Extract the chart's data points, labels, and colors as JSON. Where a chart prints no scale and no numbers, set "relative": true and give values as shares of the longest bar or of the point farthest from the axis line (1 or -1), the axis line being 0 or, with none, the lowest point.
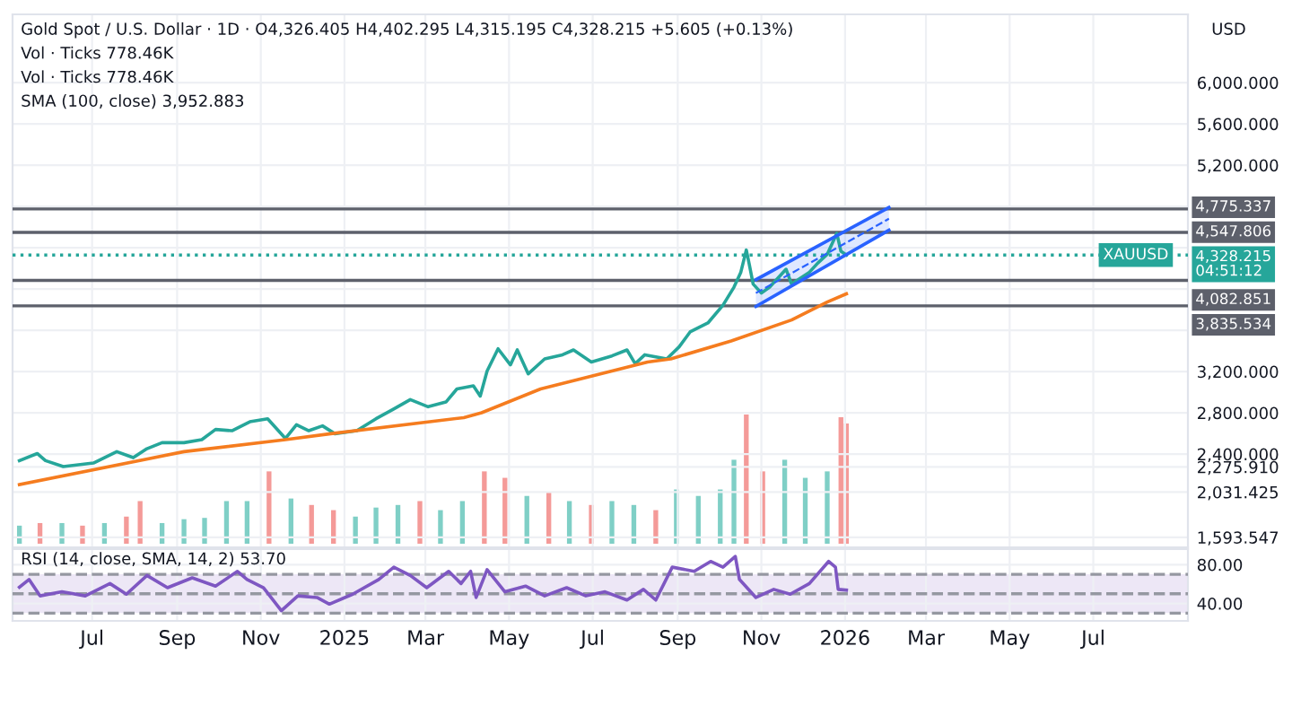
{
  "chart_data": [
    {
      "type": "line",
      "title": "Gold Spot / U.S. Dollar · 1D · O4,326.405 H4,402.295 L4,315.195 C4,328.215 +5.605 (+0.13%)",
      "ylabel": "USD",
      "annotations": [
        "Vol · Ticks 778.46K",
        "Vol · Ticks 778.46K",
        "SMA (100, close) 3,952.883",
        {
          "text": "XAUUSD",
          "x": "2026-08-01",
          "y": 4328.215
        }
      ],
      "series": [
        {
          "color": "#26a69a",
          "x": [
            "2024-05-09",
            "2024-05-22",
            "2024-05-28",
            "2024-06-10",
            "2024-07-02",
            "2024-07-19",
            "2024-07-31",
            "2024-08-10",
            "2024-08-21",
            "2024-09-06",
            "2024-09-19",
            "2024-09-29",
            "2024-10-11",
            "2024-10-24",
            "2024-11-06",
            "2024-11-19",
            "2024-11-27",
            "2024-12-06",
            "2024-12-16",
            "2024-12-25",
            "2025-01-10",
            "2025-01-24",
            "2025-02-05",
            "2025-02-18",
            "2025-03-03",
            "2025-03-16",
            "2025-03-24",
            "2025-04-05",
            "2025-04-10",
            "2025-04-15",
            "2025-04-23",
            "2025-05-02",
            "2025-05-07",
            "2025-05-15",
            "2025-05-27",
            "2025-06-09",
            "2025-06-17",
            "2025-06-30",
            "2025-07-15",
            "2025-07-26",
            "2025-08-01",
            "2025-08-08",
            "2025-08-24",
            "2025-09-02",
            "2025-09-10",
            "2025-09-23",
            "2025-10-04",
            "2025-10-12",
            "2025-10-17",
            "2025-10-21",
            "2025-10-23",
            "2025-10-26",
            "2025-11-01",
            "2025-11-07",
            "2025-11-19",
            "2025-11-23",
            "2025-12-06",
            "2025-12-12",
            "2025-12-19",
            "2025-12-26",
            "2025-12-29",
            "2026-01-02"
          ],
          "values": [
            2336,
            2405,
            2336,
            2278,
            2313,
            2423,
            2365,
            2452,
            2510,
            2510,
            2539,
            2638,
            2626,
            2713,
            2742,
            2551,
            2684,
            2626,
            2673,
            2597,
            2626,
            2742,
            2829,
            2927,
            2858,
            2904,
            3031,
            3061,
            2962,
            3205,
            3420,
            3264,
            3409,
            3177,
            3322,
            3362,
            3409,
            3292,
            3351,
            3409,
            3275,
            3362,
            3322,
            3438,
            3583,
            3670,
            3843,
            4017,
            4162,
            4377,
            4249,
            4047,
            3960,
            4017,
            4191,
            4047,
            4162,
            4249,
            4336,
            4539,
            4365,
            4328.215
          ]
        },
        {
          "color": "#f57c1f",
          "x": [
            "2024-05-09",
            "2024-09-06",
            "2024-11-19",
            "2024-12-22",
            "2025-03-29",
            "2025-04-11",
            "2025-05-24",
            "2025-08-10",
            "2025-08-27",
            "2025-10-10",
            "2025-11-23",
            "2025-12-19",
            "2026-01-02"
          ],
          "values": [
            2104,
            2423,
            2539,
            2597,
            2753,
            2800,
            3031,
            3292,
            3322,
            3496,
            3699,
            3873,
            3952.883
          ]
        },
        {
          "color": "#2962ff",
          "line_style": "dashed",
          "x": [
            "2025-10-28",
            "2026-02-02"
          ],
          "values": [
            3960,
            4680
          ],
          "lower": [
            3830,
            4570
          ],
          "upper": [
            4090,
            4790
          ]
        },
        {
          "color": "#2962ff",
          "x": [
            "2025-10-28",
            "2026-02-02"
          ],
          "values": [
            3830,
            4570
          ]
        },
        {
          "color": "#2962ff",
          "x": [
            "2025-10-28",
            "2026-02-02"
          ],
          "values": [
            4090,
            4790
          ]
        }
      ],
      "xlim": [
        "2024-05-04",
        "2026-09-08"
      ],
      "ylim": [
        1496,
        6661
      ],
      "yticks": [
        {
          "value": 1593.547,
          "label": "1,593.547"
        },
        {
          "value": 2031.425,
          "label": "2,031.425"
        },
        {
          "value": 2275.91,
          "label": "2,275.910"
        },
        {
          "value": 2400,
          "label": "2,400.000"
        },
        {
          "value": 2800,
          "label": "2,800.000"
        },
        {
          "value": 3200,
          "label": "3,200.000"
        },
        {
          "value": 3600,
          "label": null
        },
        {
          "value": 4000,
          "label": null
        },
        {
          "value": 4400,
          "label": null
        },
        {
          "value": 4800,
          "label": null
        },
        {
          "value": 5200,
          "label": "5,200.000"
        },
        {
          "value": 5600,
          "label": "5,600.000"
        },
        {
          "value": 6000,
          "label": "6,000.000"
        }
      ],
      "ref_lines": [
        {
          "axis": "y",
          "value": 4775.337,
          "label": "4,775.337",
          "color": "#5d606b",
          "line_style": "solid"
        },
        {
          "axis": "y",
          "value": 4547.806,
          "label": "4,547.806",
          "color": "#5d606b",
          "line_style": "solid"
        },
        {
          "axis": "y",
          "value": 4328.215,
          "label": "4,328.215\n04:51:12",
          "color": "#26a69a",
          "line_style": "dotted"
        },
        {
          "axis": "y",
          "value": 4082.851,
          "label": "4,082.851",
          "color": "#5d606b",
          "line_style": "solid"
        },
        {
          "axis": "y",
          "value": 3835.534,
          "label": "3,835.534",
          "color": "#5d606b",
          "line_style": "solid"
        }
      ],
      "grid": true,
      "legend": false,
      "tick_labels": "y"
    },
    {
      "type": "bar",
      "relative": true,
      "xlim": [
        "2024-05-04",
        "2026-09-08"
      ],
      "tick_labels": false,
      "x": [
        "2024-05-09",
        "2024-05-24",
        "2024-06-09",
        "2024-06-24",
        "2024-07-10",
        "2024-07-26",
        "2024-08-05",
        "2024-08-21",
        "2024-09-06",
        "2024-09-21",
        "2024-10-07",
        "2024-10-22",
        "2024-11-07",
        "2024-11-23",
        "2024-12-08",
        "2024-12-24",
        "2025-01-09",
        "2025-01-24",
        "2025-02-09",
        "2025-02-25",
        "2025-03-12",
        "2025-03-28",
        "2025-04-13",
        "2025-04-28",
        "2025-05-14",
        "2025-05-30",
        "2025-06-14",
        "2025-06-30",
        "2025-07-15",
        "2025-07-31",
        "2025-08-16",
        "2025-08-31",
        "2025-09-16",
        "2025-10-02",
        "2025-10-12",
        "2025-10-21",
        "2025-11-02",
        "2025-11-18",
        "2025-12-03",
        "2025-12-19",
        "2025-12-29",
        "2026-01-02"
      ],
      "values": [
        0.14,
        0.16,
        0.16,
        0.14,
        0.16,
        0.21,
        0.33,
        0.16,
        0.19,
        0.2,
        0.33,
        0.33,
        0.56,
        0.35,
        0.3,
        0.26,
        0.21,
        0.28,
        0.3,
        0.33,
        0.26,
        0.33,
        0.56,
        0.51,
        0.37,
        0.4,
        0.33,
        0.3,
        0.33,
        0.3,
        0.26,
        0.42,
        0.37,
        0.42,
        0.65,
        1.0,
        0.56,
        0.65,
        0.51,
        0.56,
        0.98,
        0.93
      ],
      "colors": [
        "#7fcfc6",
        "#f49a98",
        "#7fcfc6",
        "#f49a98",
        "#7fcfc6",
        "#f49a98",
        "#f49a98",
        "#7fcfc6",
        "#7fcfc6",
        "#7fcfc6",
        "#7fcfc6",
        "#7fcfc6",
        "#f49a98",
        "#7fcfc6",
        "#f49a98",
        "#f49a98",
        "#7fcfc6",
        "#7fcfc6",
        "#7fcfc6",
        "#f49a98",
        "#7fcfc6",
        "#7fcfc6",
        "#f49a98",
        "#f49a98",
        "#7fcfc6",
        "#f49a98",
        "#7fcfc6",
        "#f49a98",
        "#7fcfc6",
        "#7fcfc6",
        "#f49a98",
        "#7fcfc6",
        "#7fcfc6",
        "#7fcfc6",
        "#7fcfc6",
        "#f49a98",
        "#f49a98",
        "#7fcfc6",
        "#7fcfc6",
        "#7fcfc6",
        "#f49a98",
        "#f49a98"
      ]
    },
    {
      "type": "line",
      "title": "RSI (14, close, SMA, 14, 2) 53.70",
      "series": [
        {
          "color": "#7e57c2",
          "x": [
            "2024-05-09",
            "2024-05-16",
            "2024-05-24",
            "2024-06-09",
            "2024-06-26",
            "2024-07-14",
            "2024-07-26",
            "2024-08-10",
            "2024-08-25",
            "2024-09-12",
            "2024-09-29",
            "2024-10-15",
            "2024-10-22",
            "2024-11-03",
            "2024-11-16",
            "2024-11-28",
            "2024-12-12",
            "2024-12-21",
            "2025-01-07",
            "2025-01-26",
            "2025-02-06",
            "2025-02-18",
            "2025-03-02",
            "2025-03-18",
            "2025-03-27",
            "2025-04-03",
            "2025-04-07",
            "2025-04-15",
            "2025-04-28",
            "2025-05-13",
            "2025-05-27",
            "2025-06-12",
            "2025-06-26",
            "2025-07-10",
            "2025-07-26",
            "2025-08-07",
            "2025-08-16",
            "2025-08-28",
            "2025-09-13",
            "2025-09-25",
            "2025-10-04",
            "2025-10-13",
            "2025-10-16",
            "2025-10-28",
            "2025-11-10",
            "2025-11-22",
            "2025-12-06",
            "2025-12-20",
            "2025-12-25",
            "2025-12-27",
            "2026-01-02"
          ],
          "values": [
            56.7,
            64.7,
            47.8,
            52,
            47.8,
            60.5,
            49.5,
            68.8,
            56.2,
            66.4,
            57.9,
            73.1,
            64.7,
            56.2,
            32.6,
            47.8,
            46.1,
            39.3,
            49.5,
            64.7,
            77.4,
            68.8,
            56.2,
            73.1,
            60.5,
            73.1,
            46.1,
            74.8,
            52,
            57.9,
            47.8,
            56.2,
            47.8,
            52,
            43.5,
            54.5,
            43.5,
            77.4,
            73.1,
            83.3,
            77.4,
            88.4,
            64.7,
            46.1,
            54.5,
            49.5,
            60.5,
            83.3,
            77.4,
            54.5,
            53.7
          ]
        }
      ],
      "xlim": [
        "2024-05-04",
        "2026-09-08"
      ],
      "xticks": [
        {
          "value": "2024-07-01",
          "label": "Jul"
        },
        {
          "value": "2024-09-01",
          "label": "Sep"
        },
        {
          "value": "2024-11-01",
          "label": "Nov"
        },
        {
          "value": "2025-01-01",
          "label": "2025"
        },
        {
          "value": "2025-03-01",
          "label": "Mar"
        },
        {
          "value": "2025-05-01",
          "label": "May"
        },
        {
          "value": "2025-07-01",
          "label": "Jul"
        },
        {
          "value": "2025-09-01",
          "label": "Sep"
        },
        {
          "value": "2025-11-01",
          "label": "Nov"
        },
        {
          "value": "2026-01-01",
          "label": "2026"
        },
        {
          "value": "2026-03-01",
          "label": "Mar"
        },
        {
          "value": "2026-05-01",
          "label": "May"
        },
        {
          "value": "2026-07-01",
          "label": "Jul"
        }
      ],
      "ylim": [
        22,
        96
      ],
      "yticks": [
        {
          "value": 40,
          "label": "40.00"
        },
        {
          "value": 80,
          "label": "80.00"
        }
      ],
      "ref_lines": [
        {
          "axis": "y",
          "value": 70,
          "color": "#9598a1",
          "line_style": "dashed"
        },
        {
          "axis": "y",
          "value": 50,
          "color": "#9598a1",
          "line_style": "dashed"
        },
        {
          "axis": "y",
          "value": 30,
          "color": "#9598a1",
          "line_style": "dashed"
        }
      ],
      "bands": [
        {
          "axis": "y",
          "from": 30,
          "to": 70,
          "color": "#ede7f6"
        }
      ],
      "grid": true,
      "legend": false
    }
  ]
}
